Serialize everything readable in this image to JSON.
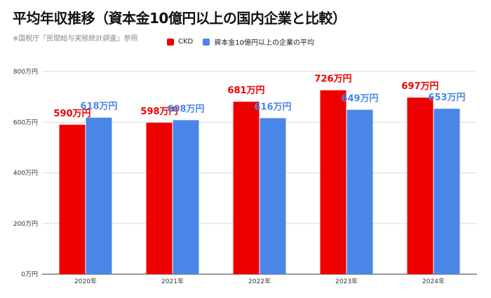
{
  "chart_data": {
    "type": "bar",
    "title": "平均年収推移（資本金10億円以上の国内企業と比較）",
    "subtitle": "※国税庁『民間給与実態統計調査』参照",
    "categories": [
      "2020年",
      "2021年",
      "2022年",
      "2023年",
      "2024年"
    ],
    "series": [
      {
        "name": "CKD",
        "color": "#ee0000",
        "values": [
          590,
          598,
          681,
          726,
          697
        ],
        "labels": [
          "590万円",
          "598万円",
          "681万円",
          "726万円",
          "697万円"
        ]
      },
      {
        "name": "資本金10億円以上の企業の平均",
        "color": "#4a86e8",
        "values": [
          618,
          608,
          616,
          649,
          653
        ],
        "labels": [
          "618万円",
          "608万円",
          "616万円",
          "649万円",
          "653万円"
        ]
      }
    ],
    "ylim": [
      0,
      800
    ],
    "yticks": [
      0,
      200,
      400,
      600,
      800
    ],
    "ytick_labels": [
      "0万円",
      "200万円",
      "400万円",
      "600万円",
      "800万円"
    ],
    "grid": true,
    "legend_position": "top"
  }
}
